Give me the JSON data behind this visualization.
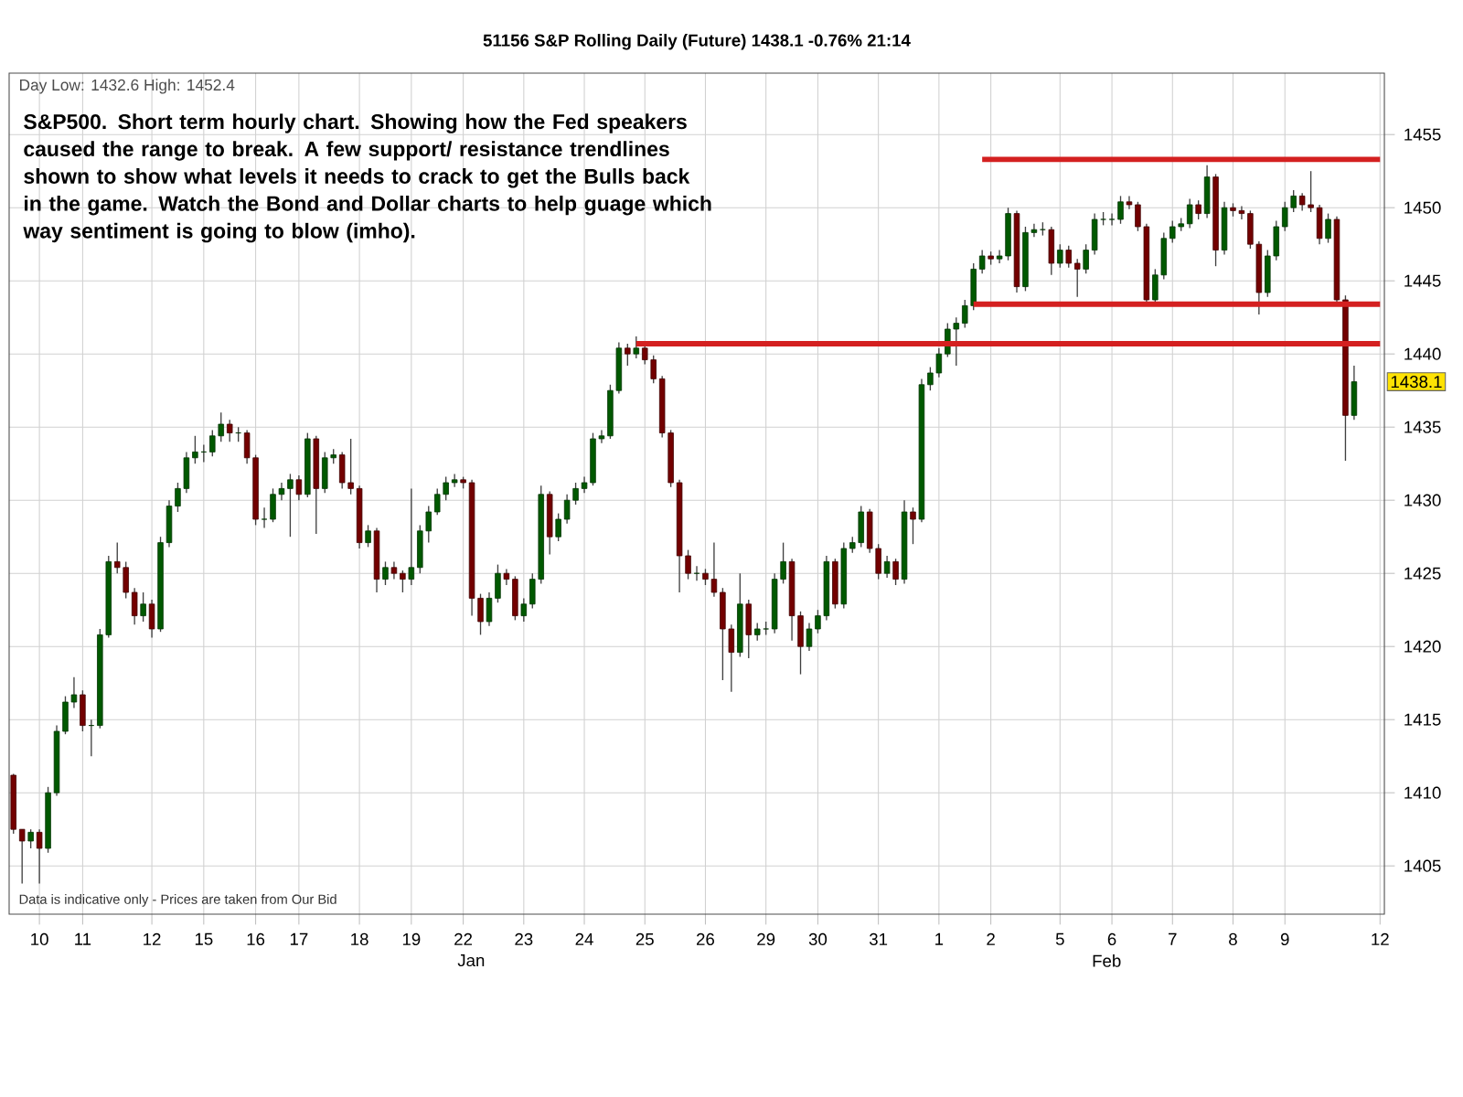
{
  "chart_data": {
    "type": "candlestick",
    "title": "51156 S&P Rolling Daily (Future) 1438.1 -0.76% 21:14",
    "subtitle": "Day Low: 1432.6 High: 1452.4",
    "annotations": [
      "S&P500. Short term hourly chart. Showing how the Fed speakers caused the range to break. A few support/ resistance trendlines shown to show what levels it needs to crack to get the Bulls back in the game. Watch the Bond and Dollar charts to help guage which way sentiment is going to blow (imho).",
      "Data is indicative only - Prices are taken from Our Bid",
      {
        "text": "1438.1",
        "y": 1438.1
      },
      "Jan",
      "Feb"
    ],
    "categories": [
      null,
      null,
      null,
      "10",
      null,
      null,
      null,
      null,
      "11",
      null,
      null,
      null,
      null,
      null,
      null,
      null,
      "12",
      null,
      null,
      null,
      null,
      null,
      "15",
      null,
      null,
      null,
      null,
      null,
      "16",
      null,
      null,
      null,
      null,
      "17",
      null,
      null,
      null,
      null,
      null,
      null,
      "18",
      null,
      null,
      null,
      null,
      null,
      "19",
      null,
      null,
      null,
      null,
      null,
      "22",
      null,
      null,
      null,
      null,
      null,
      null,
      "23",
      null,
      null,
      null,
      null,
      null,
      null,
      "24",
      null,
      null,
      null,
      null,
      null,
      null,
      "25",
      null,
      null,
      null,
      null,
      null,
      null,
      "26",
      null,
      null,
      null,
      null,
      null,
      null,
      "29",
      null,
      null,
      null,
      null,
      null,
      "30",
      null,
      null,
      null,
      null,
      null,
      null,
      "31",
      null,
      null,
      null,
      null,
      null,
      null,
      "1",
      null,
      null,
      null,
      null,
      null,
      "2",
      null,
      null,
      null,
      null,
      null,
      null,
      null,
      "5",
      null,
      null,
      null,
      null,
      null,
      "6",
      null,
      null,
      null,
      null,
      null,
      null,
      "7",
      null,
      null,
      null,
      null,
      null,
      null,
      "8",
      null,
      null,
      null,
      null,
      null,
      "9",
      null,
      null,
      null,
      null,
      null,
      null,
      null,
      null,
      null,
      null,
      "12"
    ],
    "ohlc": [
      [
        1411.2,
        1411.3,
        1407.2,
        1407.5
      ],
      [
        1407.5,
        1407.5,
        1403.8,
        1406.7
      ],
      [
        1406.7,
        1407.5,
        1406.2,
        1407.3
      ],
      [
        1407.3,
        1407.5,
        1403.8,
        1406.2
      ],
      [
        1406.2,
        1410.4,
        1405.9,
        1410.0
      ],
      [
        1410.0,
        1414.6,
        1409.8,
        1414.2
      ],
      [
        1414.2,
        1416.6,
        1414.0,
        1416.2
      ],
      [
        1416.2,
        1417.9,
        1415.8,
        1416.7
      ],
      [
        1416.7,
        1417.0,
        1414.2,
        1414.6
      ],
      [
        1414.6,
        1415.0,
        1412.5,
        1414.6
      ],
      [
        1414.6,
        1421.2,
        1414.4,
        1420.8
      ],
      [
        1420.8,
        1426.2,
        1420.6,
        1425.8
      ],
      [
        1425.8,
        1427.1,
        1425.0,
        1425.4
      ],
      [
        1425.4,
        1425.8,
        1423.3,
        1423.7
      ],
      [
        1423.7,
        1424.0,
        1421.5,
        1422.1
      ],
      [
        1422.1,
        1423.7,
        1421.7,
        1422.9
      ],
      [
        1422.9,
        1423.2,
        1420.6,
        1421.2
      ],
      [
        1421.2,
        1427.5,
        1421.0,
        1427.1
      ],
      [
        1427.1,
        1430.0,
        1426.8,
        1429.6
      ],
      [
        1429.6,
        1431.2,
        1429.2,
        1430.8
      ],
      [
        1430.8,
        1433.3,
        1430.5,
        1432.9
      ],
      [
        1432.9,
        1434.4,
        1432.5,
        1433.3
      ],
      [
        1433.3,
        1433.8,
        1432.6,
        1433.3
      ],
      [
        1433.3,
        1434.8,
        1433.0,
        1434.4
      ],
      [
        1434.4,
        1436.0,
        1434.0,
        1435.2
      ],
      [
        1435.2,
        1435.5,
        1434.0,
        1434.6
      ],
      [
        1434.6,
        1435.0,
        1434.0,
        1434.6
      ],
      [
        1434.6,
        1434.8,
        1432.5,
        1432.9
      ],
      [
        1432.9,
        1433.1,
        1428.3,
        1428.7
      ],
      [
        1428.7,
        1429.5,
        1428.1,
        1428.7
      ],
      [
        1428.7,
        1430.8,
        1428.5,
        1430.4
      ],
      [
        1430.4,
        1431.2,
        1430.0,
        1430.8
      ],
      [
        1430.8,
        1431.8,
        1427.5,
        1431.4
      ],
      [
        1431.4,
        1431.7,
        1430.0,
        1430.4
      ],
      [
        1430.4,
        1434.6,
        1430.2,
        1434.2
      ],
      [
        1434.2,
        1434.4,
        1427.7,
        1430.8
      ],
      [
        1430.8,
        1433.3,
        1430.5,
        1432.9
      ],
      [
        1432.9,
        1433.5,
        1432.5,
        1433.1
      ],
      [
        1433.1,
        1433.3,
        1430.8,
        1431.2
      ],
      [
        1431.2,
        1434.2,
        1430.4,
        1430.8
      ],
      [
        1430.8,
        1431.0,
        1426.7,
        1427.1
      ],
      [
        1427.1,
        1428.3,
        1426.8,
        1427.9
      ],
      [
        1427.9,
        1428.1,
        1423.7,
        1424.6
      ],
      [
        1424.6,
        1425.8,
        1424.2,
        1425.4
      ],
      [
        1425.4,
        1425.8,
        1424.6,
        1425.0
      ],
      [
        1425.0,
        1425.2,
        1423.7,
        1424.6
      ],
      [
        1424.6,
        1430.8,
        1424.2,
        1425.4
      ],
      [
        1425.4,
        1428.3,
        1425.0,
        1427.9
      ],
      [
        1427.9,
        1429.6,
        1427.1,
        1429.2
      ],
      [
        1429.2,
        1430.8,
        1429.0,
        1430.4
      ],
      [
        1430.4,
        1431.6,
        1430.0,
        1431.2
      ],
      [
        1431.2,
        1431.8,
        1430.9,
        1431.4
      ],
      [
        1431.4,
        1431.6,
        1430.8,
        1431.2
      ],
      [
        1431.2,
        1431.4,
        1422.1,
        1423.3
      ],
      [
        1423.3,
        1423.6,
        1420.8,
        1421.7
      ],
      [
        1421.7,
        1423.7,
        1421.4,
        1423.3
      ],
      [
        1423.3,
        1425.6,
        1423.0,
        1425.0
      ],
      [
        1425.0,
        1425.3,
        1424.2,
        1424.6
      ],
      [
        1424.6,
        1424.8,
        1421.8,
        1422.1
      ],
      [
        1422.1,
        1423.3,
        1421.7,
        1422.9
      ],
      [
        1422.9,
        1425.0,
        1422.6,
        1424.6
      ],
      [
        1424.6,
        1431.0,
        1424.3,
        1430.4
      ],
      [
        1430.4,
        1430.6,
        1426.3,
        1427.5
      ],
      [
        1427.5,
        1429.1,
        1427.2,
        1428.7
      ],
      [
        1428.7,
        1430.4,
        1428.4,
        1430.0
      ],
      [
        1430.0,
        1431.2,
        1429.7,
        1430.8
      ],
      [
        1430.8,
        1431.6,
        1430.5,
        1431.2
      ],
      [
        1431.2,
        1434.6,
        1431.0,
        1434.2
      ],
      [
        1434.2,
        1434.8,
        1433.9,
        1434.4
      ],
      [
        1434.4,
        1437.9,
        1434.2,
        1437.5
      ],
      [
        1437.5,
        1440.8,
        1437.3,
        1440.4
      ],
      [
        1440.4,
        1440.7,
        1439.2,
        1440.0
      ],
      [
        1440.0,
        1441.2,
        1439.7,
        1440.4
      ],
      [
        1440.4,
        1440.7,
        1439.3,
        1439.6
      ],
      [
        1439.6,
        1439.9,
        1438.0,
        1438.3
      ],
      [
        1438.3,
        1438.5,
        1434.3,
        1434.6
      ],
      [
        1434.6,
        1434.8,
        1430.9,
        1431.2
      ],
      [
        1431.2,
        1431.4,
        1423.7,
        1426.2
      ],
      [
        1426.2,
        1426.6,
        1424.6,
        1425.0
      ],
      [
        1425.0,
        1425.5,
        1424.5,
        1425.0
      ],
      [
        1425.0,
        1425.3,
        1424.2,
        1424.6
      ],
      [
        1424.6,
        1427.1,
        1423.4,
        1423.7
      ],
      [
        1423.7,
        1424.0,
        1417.7,
        1421.2
      ],
      [
        1421.2,
        1421.5,
        1416.9,
        1419.6
      ],
      [
        1419.6,
        1425.0,
        1419.3,
        1422.9
      ],
      [
        1422.9,
        1423.2,
        1419.2,
        1420.8
      ],
      [
        1420.8,
        1421.6,
        1420.4,
        1421.2
      ],
      [
        1421.2,
        1421.7,
        1420.8,
        1421.2
      ],
      [
        1421.2,
        1425.0,
        1420.9,
        1424.6
      ],
      [
        1424.6,
        1427.1,
        1424.3,
        1425.8
      ],
      [
        1425.8,
        1426.0,
        1420.4,
        1422.1
      ],
      [
        1422.1,
        1422.4,
        1418.1,
        1420.0
      ],
      [
        1420.0,
        1421.6,
        1419.7,
        1421.2
      ],
      [
        1421.2,
        1422.5,
        1420.9,
        1422.1
      ],
      [
        1422.1,
        1426.2,
        1421.8,
        1425.8
      ],
      [
        1425.8,
        1426.0,
        1422.6,
        1422.9
      ],
      [
        1422.9,
        1427.1,
        1422.6,
        1426.7
      ],
      [
        1426.7,
        1427.5,
        1426.4,
        1427.1
      ],
      [
        1427.1,
        1429.6,
        1426.8,
        1429.2
      ],
      [
        1429.2,
        1429.4,
        1426.4,
        1426.7
      ],
      [
        1426.7,
        1427.0,
        1424.6,
        1425.0
      ],
      [
        1425.0,
        1426.2,
        1424.7,
        1425.8
      ],
      [
        1425.8,
        1426.0,
        1424.2,
        1424.6
      ],
      [
        1424.6,
        1430.0,
        1424.3,
        1429.2
      ],
      [
        1429.2,
        1429.5,
        1427.0,
        1428.7
      ],
      [
        1428.7,
        1438.3,
        1428.5,
        1437.9
      ],
      [
        1437.9,
        1439.1,
        1437.5,
        1438.7
      ],
      [
        1438.7,
        1440.4,
        1438.4,
        1440.0
      ],
      [
        1440.0,
        1442.1,
        1439.8,
        1441.7
      ],
      [
        1441.7,
        1442.5,
        1439.2,
        1442.1
      ],
      [
        1442.1,
        1443.7,
        1441.8,
        1443.3
      ],
      [
        1443.3,
        1446.2,
        1443.0,
        1445.8
      ],
      [
        1445.8,
        1447.1,
        1445.5,
        1446.7
      ],
      [
        1446.7,
        1447.0,
        1446.1,
        1446.5
      ],
      [
        1446.5,
        1447.1,
        1446.2,
        1446.7
      ],
      [
        1446.7,
        1450.0,
        1446.4,
        1449.6
      ],
      [
        1449.6,
        1449.8,
        1444.2,
        1444.6
      ],
      [
        1444.6,
        1448.7,
        1444.3,
        1448.3
      ],
      [
        1448.3,
        1448.9,
        1448.0,
        1448.5
      ],
      [
        1448.5,
        1449.0,
        1448.1,
        1448.5
      ],
      [
        1448.5,
        1448.7,
        1445.4,
        1446.2
      ],
      [
        1446.2,
        1447.5,
        1445.9,
        1447.1
      ],
      [
        1447.1,
        1447.4,
        1445.9,
        1446.2
      ],
      [
        1446.2,
        1446.5,
        1443.9,
        1445.8
      ],
      [
        1445.8,
        1447.5,
        1445.5,
        1447.1
      ],
      [
        1447.1,
        1449.6,
        1446.8,
        1449.2
      ],
      [
        1449.2,
        1449.7,
        1448.8,
        1449.2
      ],
      [
        1449.2,
        1449.6,
        1448.8,
        1449.2
      ],
      [
        1449.2,
        1450.8,
        1448.9,
        1450.4
      ],
      [
        1450.4,
        1450.8,
        1449.9,
        1450.2
      ],
      [
        1450.2,
        1450.4,
        1448.4,
        1448.7
      ],
      [
        1448.7,
        1448.9,
        1443.4,
        1443.7
      ],
      [
        1443.7,
        1445.8,
        1443.4,
        1445.4
      ],
      [
        1445.4,
        1448.3,
        1445.1,
        1447.9
      ],
      [
        1447.9,
        1449.1,
        1447.6,
        1448.7
      ],
      [
        1448.7,
        1449.3,
        1448.4,
        1448.9
      ],
      [
        1448.9,
        1450.6,
        1448.6,
        1450.2
      ],
      [
        1450.2,
        1450.5,
        1449.2,
        1449.6
      ],
      [
        1449.6,
        1452.9,
        1449.3,
        1452.1
      ],
      [
        1452.1,
        1452.3,
        1446.0,
        1447.1
      ],
      [
        1447.1,
        1450.4,
        1446.8,
        1450.0
      ],
      [
        1450.0,
        1450.3,
        1449.4,
        1449.8
      ],
      [
        1449.8,
        1450.1,
        1449.2,
        1449.6
      ],
      [
        1449.6,
        1449.8,
        1447.2,
        1447.5
      ],
      [
        1447.5,
        1447.7,
        1442.7,
        1444.2
      ],
      [
        1444.2,
        1447.1,
        1443.9,
        1446.7
      ],
      [
        1446.7,
        1449.1,
        1446.4,
        1448.7
      ],
      [
        1448.7,
        1450.4,
        1448.4,
        1450.0
      ],
      [
        1450.0,
        1451.2,
        1449.7,
        1450.8
      ],
      [
        1450.8,
        1451.0,
        1449.8,
        1450.2
      ],
      [
        1450.2,
        1452.5,
        1449.7,
        1450.0
      ],
      [
        1450.0,
        1450.2,
        1447.5,
        1447.9
      ],
      [
        1447.9,
        1449.6,
        1447.6,
        1449.2
      ],
      [
        1449.2,
        1449.4,
        1443.4,
        1443.7
      ],
      [
        1443.7,
        1444.0,
        1432.7,
        1435.8
      ],
      [
        1435.8,
        1439.2,
        1435.5,
        1438.1
      ],
      null,
      null,
      null
    ],
    "series": [
      {
        "type": "line",
        "color": "#d42020",
        "values": [
          null,
          null,
          null,
          null,
          null,
          null,
          null,
          null,
          null,
          null,
          null,
          null,
          null,
          null,
          null,
          null,
          null,
          null,
          null,
          null,
          null,
          null,
          null,
          null,
          null,
          null,
          null,
          null,
          null,
          null,
          null,
          null,
          null,
          null,
          null,
          null,
          null,
          null,
          null,
          null,
          null,
          null,
          null,
          null,
          null,
          null,
          null,
          null,
          null,
          null,
          null,
          null,
          null,
          null,
          null,
          null,
          null,
          null,
          null,
          null,
          null,
          null,
          null,
          null,
          null,
          null,
          null,
          null,
          null,
          null,
          null,
          null,
          null,
          null,
          null,
          null,
          null,
          null,
          null,
          null,
          null,
          null,
          null,
          null,
          null,
          null,
          null,
          null,
          null,
          null,
          null,
          null,
          null,
          null,
          null,
          null,
          null,
          null,
          null,
          null,
          null,
          null,
          null,
          null,
          null,
          null,
          null,
          null,
          null,
          null,
          null,
          null,
          1453.3,
          1453.3,
          1453.3,
          1453.3,
          1453.3,
          1453.3,
          1453.3,
          1453.3,
          1453.3,
          1453.3,
          1453.3,
          1453.3,
          1453.3,
          1453.3,
          1453.3,
          1453.3,
          1453.3,
          1453.3,
          1453.3,
          1453.3,
          1453.3,
          1453.3,
          1453.3,
          1453.3,
          1453.3,
          1453.3,
          1453.3,
          1453.3,
          1453.3,
          1453.3,
          1453.3,
          1453.3,
          1453.3,
          1453.3,
          1453.3,
          1453.3,
          1453.3,
          1453.3,
          1453.3,
          1453.3,
          1453.3,
          1453.3,
          1453.3,
          1453.3,
          1453.3,
          1453.3,
          1453.3
        ]
      },
      {
        "type": "line",
        "color": "#d42020",
        "values": [
          null,
          null,
          null,
          null,
          null,
          null,
          null,
          null,
          null,
          null,
          null,
          null,
          null,
          null,
          null,
          null,
          null,
          null,
          null,
          null,
          null,
          null,
          null,
          null,
          null,
          null,
          null,
          null,
          null,
          null,
          null,
          null,
          null,
          null,
          null,
          null,
          null,
          null,
          null,
          null,
          null,
          null,
          null,
          null,
          null,
          null,
          null,
          null,
          null,
          null,
          null,
          null,
          null,
          null,
          null,
          null,
          null,
          null,
          null,
          null,
          null,
          null,
          null,
          null,
          null,
          null,
          null,
          null,
          null,
          null,
          null,
          null,
          null,
          null,
          null,
          null,
          null,
          null,
          null,
          null,
          null,
          null,
          null,
          null,
          null,
          null,
          null,
          null,
          null,
          null,
          null,
          null,
          null,
          null,
          null,
          null,
          null,
          null,
          null,
          null,
          null,
          null,
          null,
          null,
          null,
          null,
          null,
          null,
          null,
          null,
          null,
          1443.4,
          1443.4,
          1443.4,
          1443.4,
          1443.4,
          1443.4,
          1443.4,
          1443.4,
          1443.4,
          1443.4,
          1443.4,
          1443.4,
          1443.4,
          1443.4,
          1443.4,
          1443.4,
          1443.4,
          1443.4,
          1443.4,
          1443.4,
          1443.4,
          1443.4,
          1443.4,
          1443.4,
          1443.4,
          1443.4,
          1443.4,
          1443.4,
          1443.4,
          1443.4,
          1443.4,
          1443.4,
          1443.4,
          1443.4,
          1443.4,
          1443.4,
          1443.4,
          1443.4,
          1443.4,
          1443.4,
          1443.4,
          1443.4,
          1443.4,
          1443.4,
          1443.4,
          1443.4,
          1443.4,
          1443.4
        ]
      },
      {
        "type": "line",
        "color": "#d42020",
        "values": [
          null,
          null,
          null,
          null,
          null,
          null,
          null,
          null,
          null,
          null,
          null,
          null,
          null,
          null,
          null,
          null,
          null,
          null,
          null,
          null,
          null,
          null,
          null,
          null,
          null,
          null,
          null,
          null,
          null,
          null,
          null,
          null,
          null,
          null,
          null,
          null,
          null,
          null,
          null,
          null,
          null,
          null,
          null,
          null,
          null,
          null,
          null,
          null,
          null,
          null,
          null,
          null,
          null,
          null,
          null,
          null,
          null,
          null,
          null,
          null,
          null,
          null,
          null,
          null,
          null,
          null,
          null,
          null,
          null,
          null,
          null,
          null,
          1440.7,
          1440.7,
          1440.7,
          1440.7,
          1440.7,
          1440.7,
          1440.7,
          1440.7,
          1440.7,
          1440.7,
          1440.7,
          1440.7,
          1440.7,
          1440.7,
          1440.7,
          1440.7,
          1440.7,
          1440.7,
          1440.7,
          1440.7,
          1440.7,
          1440.7,
          1440.7,
          1440.7,
          1440.7,
          1440.7,
          1440.7,
          1440.7,
          1440.7,
          1440.7,
          1440.7,
          1440.7,
          1440.7,
          1440.7,
          1440.7,
          1440.7,
          1440.7,
          1440.7,
          1440.7,
          1440.7,
          1440.7,
          1440.7,
          1440.7,
          1440.7,
          1440.7,
          1440.7,
          1440.7,
          1440.7,
          1440.7,
          1440.7,
          1440.7,
          1440.7,
          1440.7,
          1440.7,
          1440.7,
          1440.7,
          1440.7,
          1440.7,
          1440.7,
          1440.7,
          1440.7,
          1440.7,
          1440.7,
          1440.7,
          1440.7,
          1440.7,
          1440.7,
          1440.7,
          1440.7,
          1440.7,
          1440.7,
          1440.7,
          1440.7,
          1440.7,
          1440.7,
          1440.7,
          1440.7,
          1440.7,
          1440.7,
          1440.7,
          1440.7,
          1440.7,
          1440.7,
          1440.7,
          1440.7,
          1440.7,
          1440.7
        ]
      }
    ],
    "ylim": [
      1401.7,
      1459.2
    ],
    "yticks": [
      1405,
      1410,
      1415,
      1420,
      1425,
      1430,
      1435,
      1440,
      1445,
      1450,
      1455
    ],
    "grid": true
  }
}
